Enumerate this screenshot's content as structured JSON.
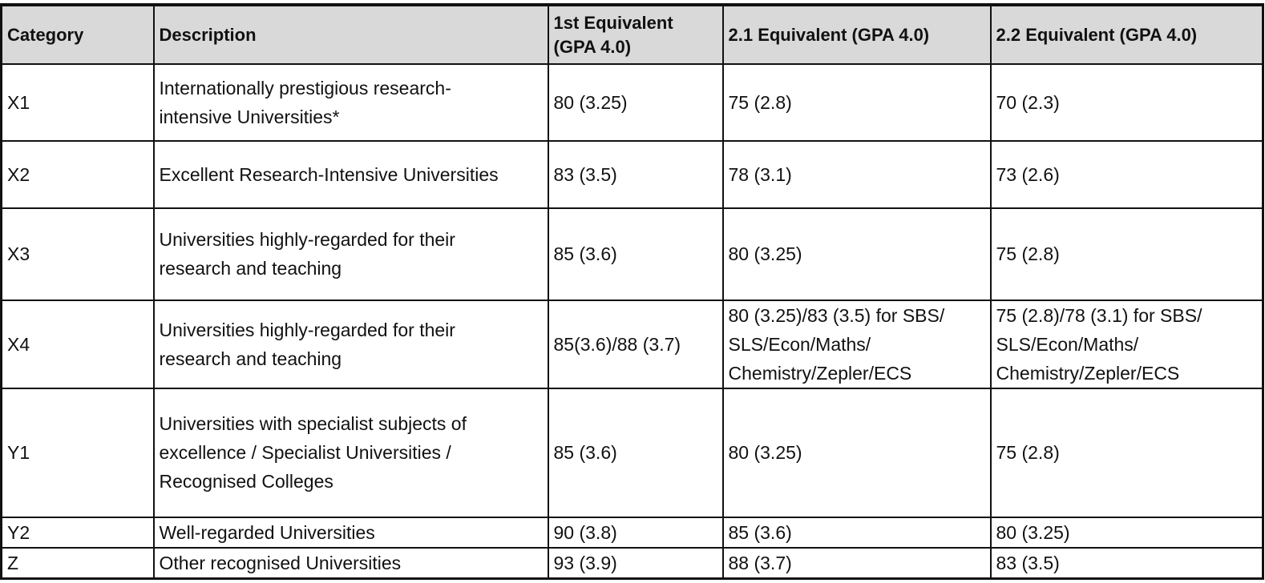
{
  "table": {
    "headers": [
      "Category",
      "Description",
      "1st Equivalent\n(GPA 4.0)",
      "2.1 Equivalent (GPA 4.0)",
      "2.2 Equivalent  (GPA 4.0)"
    ],
    "rows": [
      {
        "category": "X1",
        "description": "Internationally prestigious research-\nintensive Universities*",
        "first": "80 (3.25)",
        "two_one": "75 (2.8)",
        "two_two": "70 (2.3)"
      },
      {
        "category": "X2",
        "description": "Excellent Research-Intensive Universities",
        "first": "83 (3.5)",
        "two_one": "78 (3.1)",
        "two_two": "73 (2.6)"
      },
      {
        "category": "X3",
        "description": "Universities highly-regarded for their\nresearch and teaching",
        "first": "85 (3.6)",
        "two_one": "80 (3.25)",
        "two_two": "75 (2.8)"
      },
      {
        "category": "X4",
        "description": "Universities highly-regarded for their\nresearch and teaching",
        "first": "85(3.6)/88 (3.7)",
        "two_one": "80 (3.25)/83 (3.5) for SBS/\nSLS/Econ/Maths/\nChemistry/Zepler/ECS",
        "two_two": "75 (2.8)/78 (3.1) for SBS/\nSLS/Econ/Maths/\nChemistry/Zepler/ECS"
      },
      {
        "category": "Y1",
        "description": "Universities with specialist subjects of\nexcellence / Specialist Universities /\nRecognised Colleges",
        "first": "85 (3.6)",
        "two_one": "80 (3.25)",
        "two_two": "75 (2.8)"
      },
      {
        "category": "Y2",
        "description": "Well-regarded Universities",
        "first": "90 (3.8)",
        "two_one": "85 (3.6)",
        "two_two": "80 (3.25)"
      },
      {
        "category": "Z",
        "description": "Other recognised Universities",
        "first": "93 (3.9)",
        "two_one": "88 (3.7)",
        "two_two": "83 (3.5)"
      }
    ]
  }
}
